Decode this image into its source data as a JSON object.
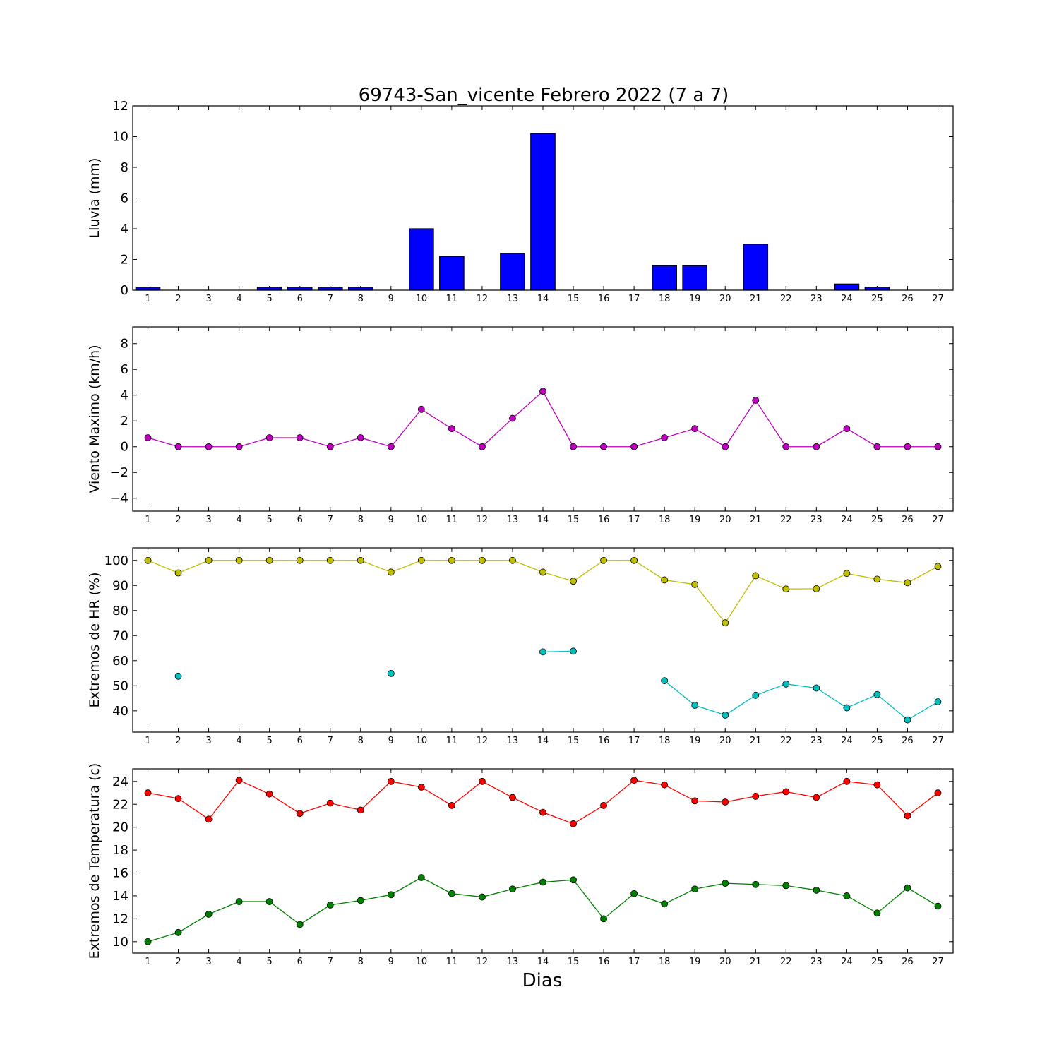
{
  "figure": {
    "title": "69743-San_vicente Febrero 2022  (7 a 7)",
    "xlabel": "Dias"
  },
  "chart_data": [
    {
      "type": "bar",
      "ylabel": "Lluvia (mm)",
      "x": [
        1,
        2,
        3,
        4,
        5,
        6,
        7,
        8,
        9,
        10,
        11,
        12,
        13,
        14,
        15,
        16,
        17,
        18,
        19,
        20,
        21,
        22,
        23,
        24,
        25,
        26,
        27
      ],
      "ylim": [
        0,
        12
      ],
      "yticks": [
        0,
        2,
        4,
        6,
        8,
        10,
        12
      ],
      "series": [
        {
          "color": "#0000ff",
          "values": [
            0.2,
            0,
            0,
            0,
            0.2,
            0.2,
            0.2,
            0.2,
            0,
            4.0,
            2.2,
            0,
            2.4,
            10.2,
            0,
            0,
            0,
            1.6,
            1.6,
            0,
            3.0,
            0,
            0,
            0.4,
            0.2,
            0,
            0
          ]
        }
      ]
    },
    {
      "type": "line",
      "ylabel": "Viento Maximo (km/h)",
      "x": [
        1,
        2,
        3,
        4,
        5,
        6,
        7,
        8,
        9,
        10,
        11,
        12,
        13,
        14,
        15,
        16,
        17,
        18,
        19,
        20,
        21,
        22,
        23,
        24,
        25,
        26,
        27
      ],
      "ylim": [
        -5,
        9.3
      ],
      "yticks": [
        -4,
        -2,
        0,
        2,
        4,
        6,
        8
      ],
      "series": [
        {
          "color": "#bf00bf",
          "values": [
            0.7,
            0,
            0,
            0,
            0.7,
            0.7,
            0,
            0.7,
            0,
            2.9,
            1.4,
            0,
            2.2,
            4.3,
            0,
            0,
            0,
            0.7,
            1.4,
            0,
            3.6,
            0,
            0,
            1.4,
            0,
            0,
            0
          ]
        }
      ]
    },
    {
      "type": "line",
      "ylabel": "Extremos de HR (%)",
      "x": [
        1,
        2,
        3,
        4,
        5,
        6,
        7,
        8,
        9,
        10,
        11,
        12,
        13,
        14,
        15,
        16,
        17,
        18,
        19,
        20,
        21,
        22,
        23,
        24,
        25,
        26,
        27
      ],
      "ylim": [
        31.5,
        105
      ],
      "yticks": [
        40,
        50,
        60,
        70,
        80,
        90,
        100
      ],
      "series": [
        {
          "color": "#bfbf00",
          "values": [
            100,
            95,
            100,
            100,
            100,
            100,
            100,
            100,
            95.3,
            100,
            100,
            100,
            100,
            95.3,
            91.7,
            100,
            100,
            92.2,
            90.4,
            75.1,
            93.9,
            88.6,
            88.7,
            94.8,
            92.5,
            91.1,
            97.6
          ]
        },
        {
          "color": "#00bfbf",
          "values": [
            null,
            53.8,
            null,
            null,
            null,
            null,
            null,
            null,
            54.9,
            null,
            null,
            null,
            null,
            63.5,
            63.8,
            null,
            null,
            52.0,
            42.2,
            38.3,
            46.2,
            50.7,
            49.1,
            41.2,
            46.5,
            36.4,
            43.6
          ]
        }
      ]
    },
    {
      "type": "line",
      "ylabel": "Extremos de Temperatura (c)",
      "x": [
        1,
        2,
        3,
        4,
        5,
        6,
        7,
        8,
        9,
        10,
        11,
        12,
        13,
        14,
        15,
        16,
        17,
        18,
        19,
        20,
        21,
        22,
        23,
        24,
        25,
        26,
        27
      ],
      "ylim": [
        9,
        25.1
      ],
      "yticks": [
        10,
        12,
        14,
        16,
        18,
        20,
        22,
        24
      ],
      "series": [
        {
          "color": "#ff0000",
          "values": [
            23.0,
            22.5,
            20.7,
            24.1,
            22.9,
            21.2,
            22.1,
            21.5,
            24.0,
            23.5,
            21.9,
            24.0,
            22.6,
            21.3,
            20.3,
            21.9,
            24.1,
            23.7,
            22.3,
            22.2,
            22.7,
            23.1,
            22.6,
            24.0,
            23.7,
            21.0,
            23.0
          ]
        },
        {
          "color": "#008000",
          "values": [
            10.0,
            10.8,
            12.4,
            13.5,
            13.5,
            11.5,
            13.2,
            13.6,
            14.1,
            15.6,
            14.2,
            13.9,
            14.6,
            15.2,
            15.4,
            12.0,
            14.2,
            13.3,
            14.6,
            15.1,
            15.0,
            14.9,
            14.5,
            14.0,
            12.5,
            14.7,
            13.1
          ]
        }
      ]
    }
  ]
}
